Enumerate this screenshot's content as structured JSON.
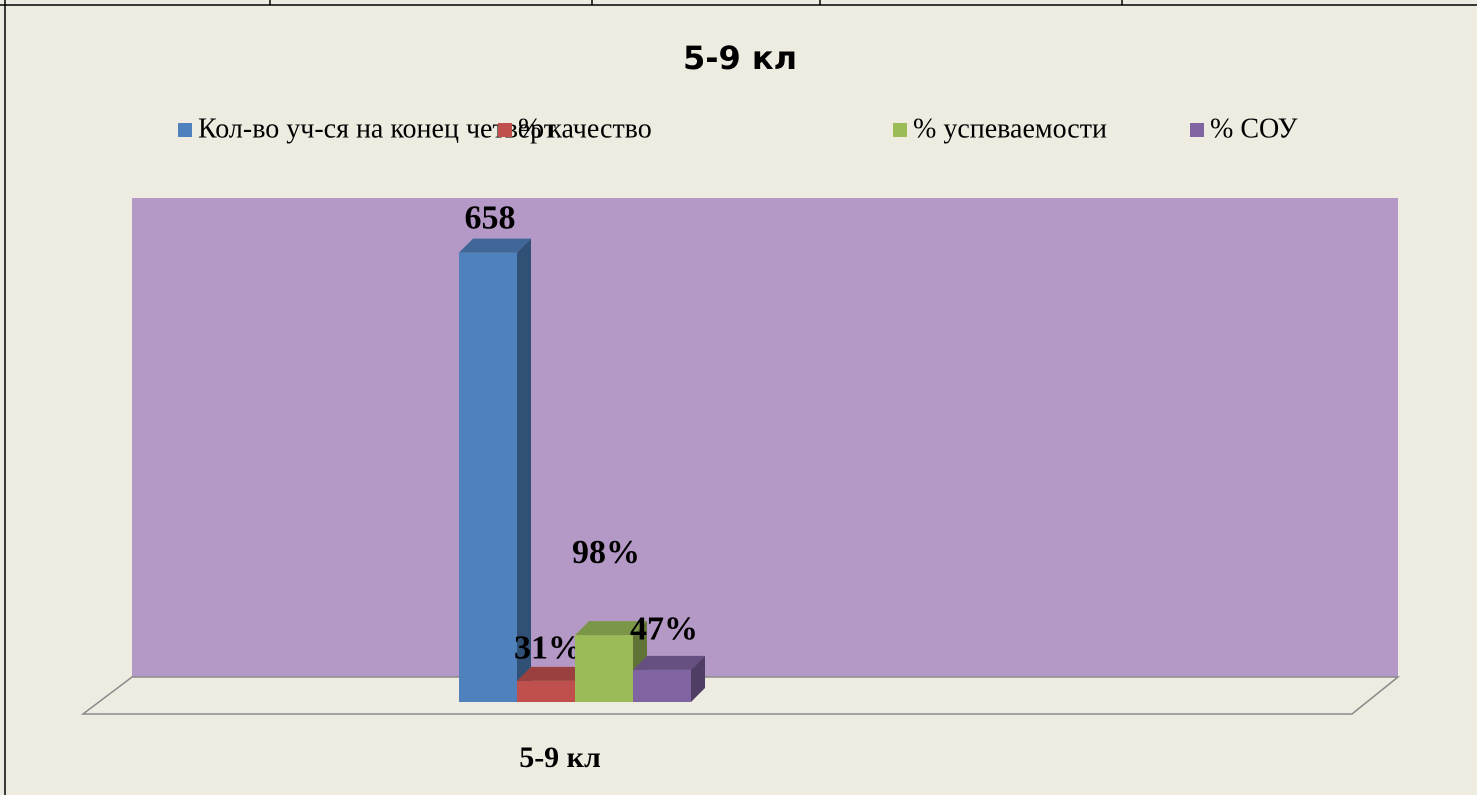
{
  "chart_data": {
    "type": "bar3d",
    "title": "5-9 кл",
    "categories": [
      "5-9 кл"
    ],
    "series": [
      {
        "name": "Кол-во уч-ся на конец  четверт",
        "color": "#4f81bd",
        "values": [
          658
        ]
      },
      {
        "name": "% качество",
        "color": "#c0504d",
        "values": [
          31
        ],
        "value_labels": [
          "31%"
        ]
      },
      {
        "name": "% успеваемости",
        "color": "#9bbb59",
        "values": [
          98
        ],
        "value_labels": [
          "98%"
        ]
      },
      {
        "name": "%  СОУ",
        "color": "#8064a2",
        "values": [
          47
        ],
        "value_labels": [
          "47%"
        ]
      }
    ],
    "ylim": [
      0,
      700
    ],
    "wall_color": "#b498c5"
  }
}
